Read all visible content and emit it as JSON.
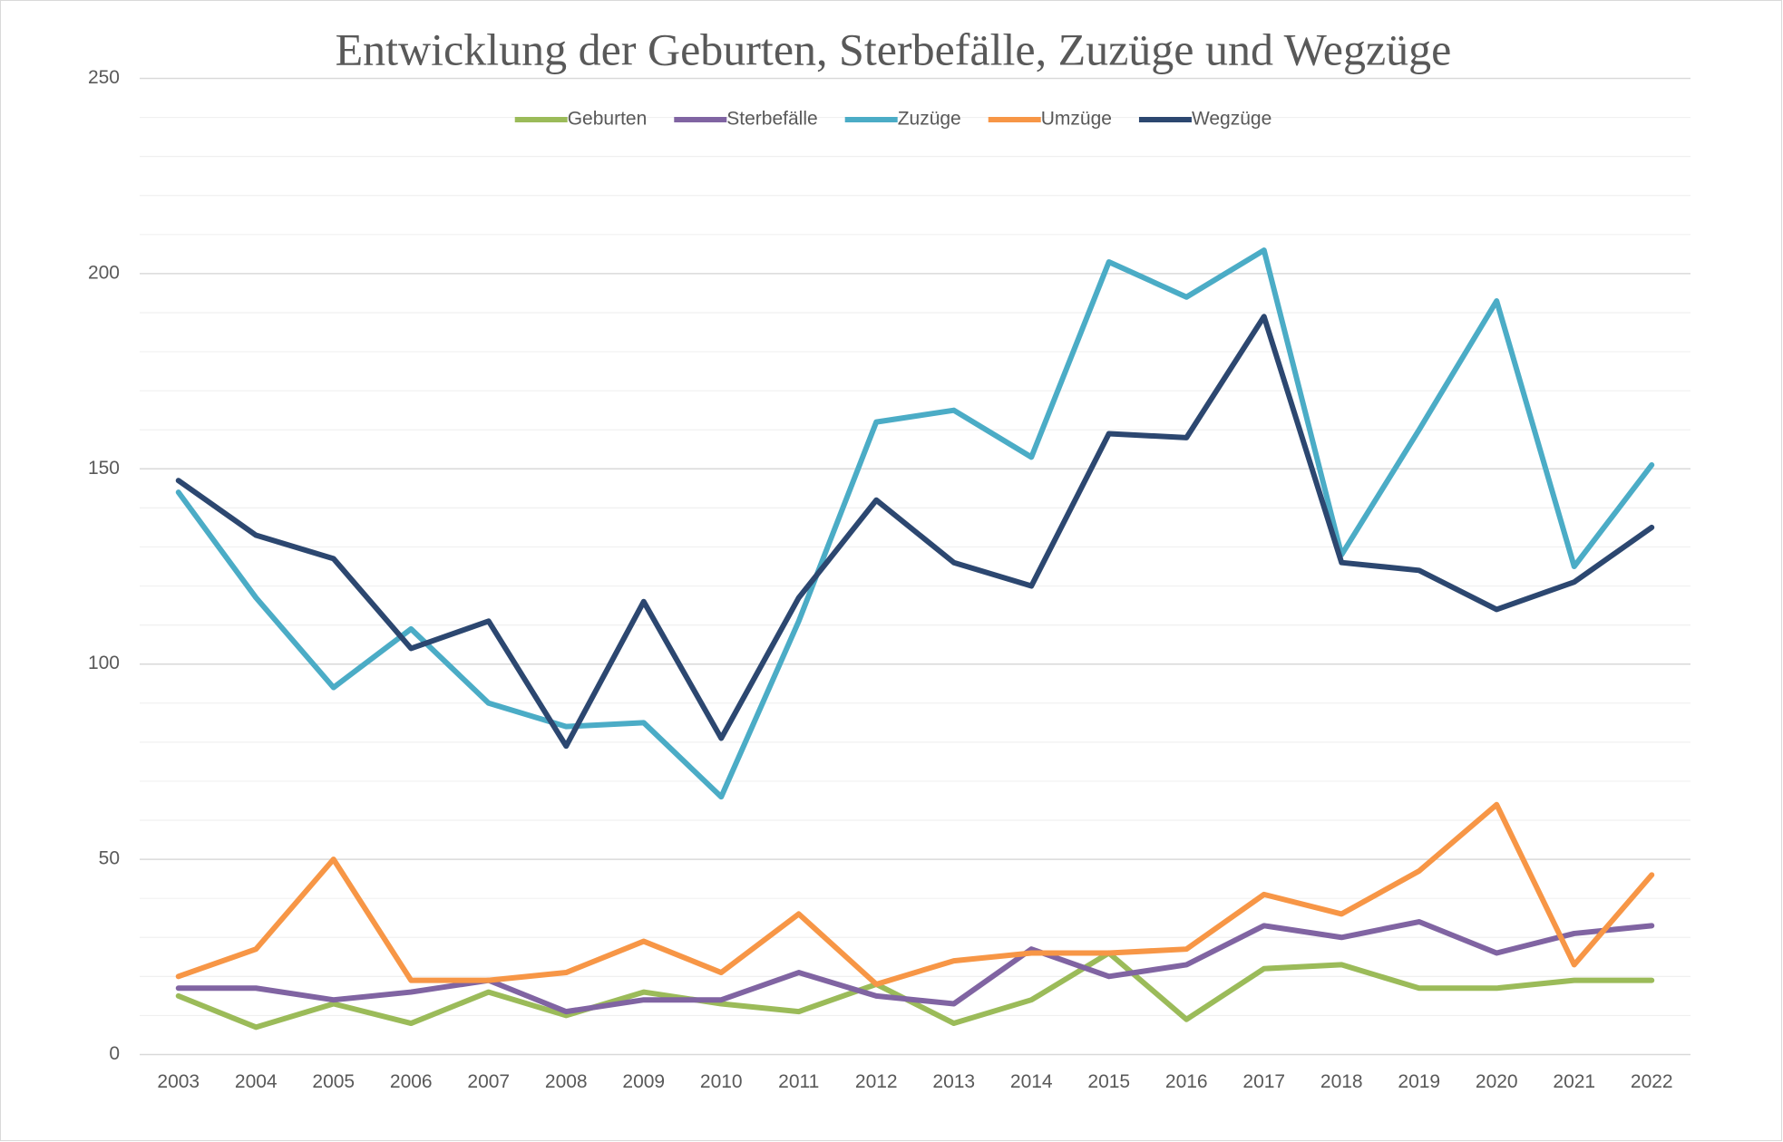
{
  "chart_data": {
    "type": "line",
    "title": "Entwicklung der Geburten, Sterbefälle, Zuzüge und Wegzüge",
    "categories": [
      "2003",
      "2004",
      "2005",
      "2006",
      "2007",
      "2008",
      "2009",
      "2010",
      "2011",
      "2012",
      "2013",
      "2014",
      "2015",
      "2016",
      "2017",
      "2018",
      "2019",
      "2020",
      "2021",
      "2022"
    ],
    "series": [
      {
        "name": "Geburten",
        "color": "#9bbb59",
        "values": [
          15,
          7,
          13,
          8,
          16,
          10,
          16,
          13,
          11,
          18,
          8,
          14,
          26,
          9,
          22,
          23,
          17,
          17,
          19,
          19
        ]
      },
      {
        "name": "Sterbefälle",
        "color": "#8064a2",
        "values": [
          17,
          17,
          14,
          16,
          19,
          11,
          14,
          14,
          21,
          15,
          13,
          27,
          20,
          23,
          33,
          30,
          34,
          26,
          31,
          33
        ]
      },
      {
        "name": "Zuzüge",
        "color": "#4bacc6",
        "values": [
          144,
          117,
          94,
          109,
          90,
          84,
          85,
          66,
          111,
          162,
          165,
          153,
          203,
          194,
          206,
          128,
          160,
          193,
          125,
          151
        ]
      },
      {
        "name": "Umzüge",
        "color": "#f79646",
        "values": [
          20,
          27,
          50,
          19,
          19,
          21,
          29,
          21,
          36,
          18,
          24,
          26,
          26,
          27,
          41,
          36,
          47,
          64,
          23,
          46
        ]
      },
      {
        "name": "Wegzüge",
        "color": "#2c4770",
        "values": [
          147,
          133,
          127,
          104,
          111,
          79,
          116,
          81,
          117,
          142,
          126,
          120,
          159,
          158,
          189,
          126,
          124,
          114,
          121,
          135
        ]
      }
    ],
    "ylim": [
      0,
      250
    ],
    "yticks": [
      0,
      50,
      100,
      150,
      200,
      250
    ],
    "minor_yticks": [
      10,
      20,
      30,
      40,
      60,
      70,
      80,
      90,
      110,
      120,
      130,
      140,
      160,
      170,
      180,
      190,
      210,
      220,
      230,
      240
    ],
    "grid": true,
    "legend": "top"
  }
}
